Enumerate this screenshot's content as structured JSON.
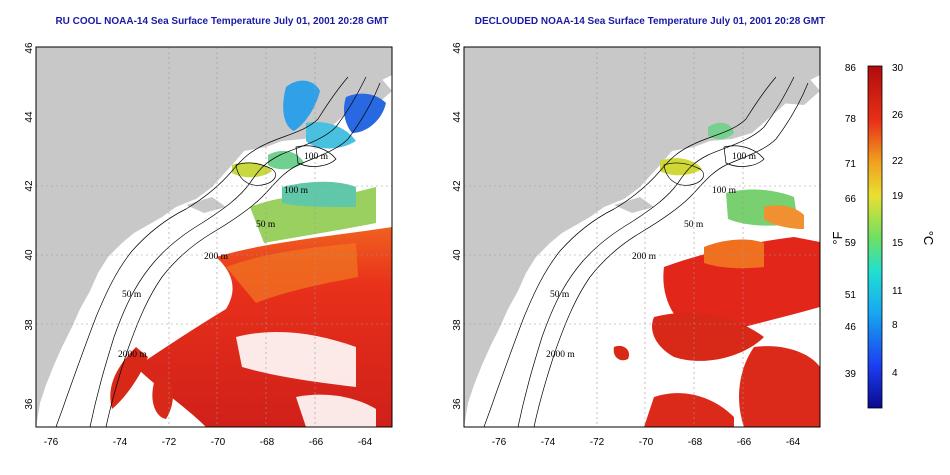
{
  "panels": [
    {
      "id": "left",
      "title": "RU COOL NOAA-14 Sea Surface Temperature July 01, 2001 20:28 GMT"
    },
    {
      "id": "right",
      "title": "DECLOUDED NOAA-14 Sea Surface Temperature July 01, 2001 20:28 GMT"
    }
  ],
  "axes": {
    "x_ticks": [
      "-76",
      "-74",
      "-72",
      "-70",
      "-68",
      "-66",
      "-64"
    ],
    "y_ticks": [
      "36",
      "38",
      "40",
      "42",
      "44",
      "46"
    ]
  },
  "contour_labels": {
    "m100": "100 m",
    "m100b": "100 m",
    "m50": "50 m",
    "m200": "200 m",
    "m50b": "50 m",
    "m2000": "2000 m"
  },
  "colorbar": {
    "f_ticks": [
      "86",
      "78",
      "71",
      "66",
      "59",
      "51",
      "46",
      "39"
    ],
    "c_ticks": [
      "30",
      "26",
      "22",
      "19",
      "15",
      "11",
      "8",
      "4"
    ],
    "f_unit": "°F",
    "c_unit": "°C"
  },
  "colors": {
    "land": "#c8c8c8",
    "cloud": "#ffffff",
    "warm": "#e3261a",
    "title": "#1a1aa6"
  }
}
